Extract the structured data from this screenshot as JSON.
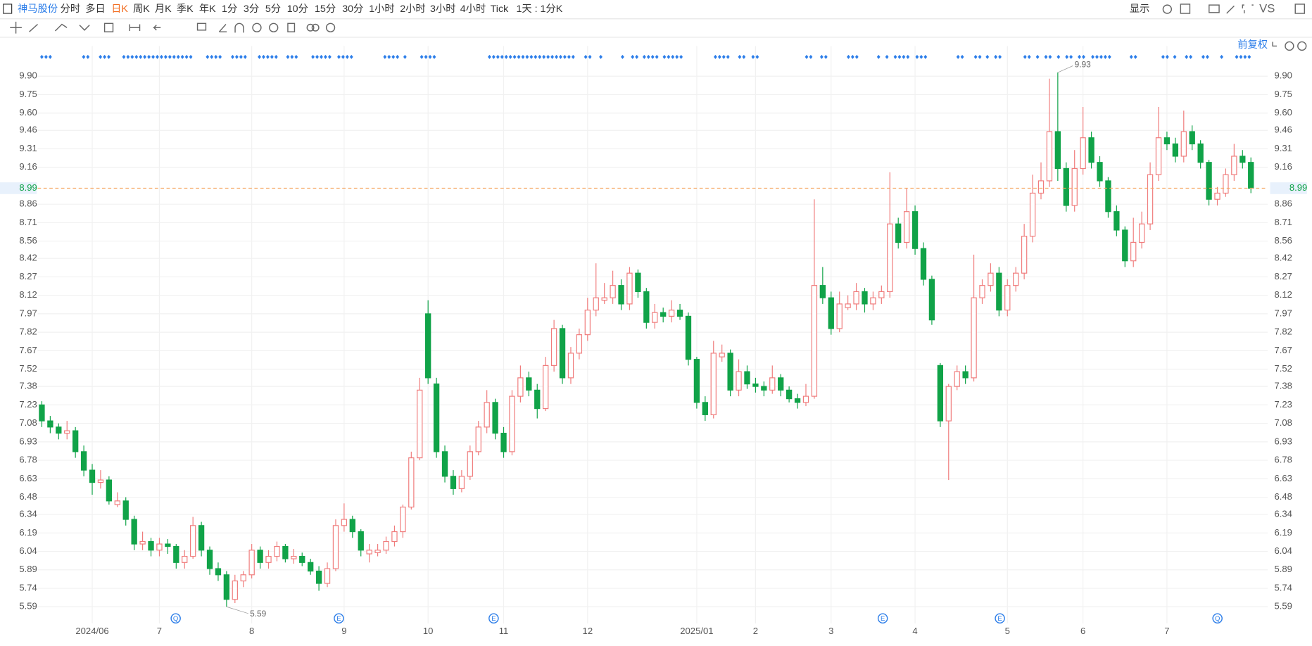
{
  "toolbar": {
    "stock": "神马股份",
    "periods": [
      "分时",
      "多日",
      "日K",
      "周K",
      "月K",
      "季K",
      "年K",
      "1分",
      "3分",
      "5分",
      "10分",
      "15分",
      "30分",
      "1小时",
      "2小时",
      "3小时",
      "4小时",
      "Tick",
      "1天 : 1分K"
    ],
    "display": "显示",
    "compare": "VS",
    "adjust": "前复权"
  },
  "chart_data": {
    "type": "candlestick",
    "categories": [
      null,
      null,
      null,
      null,
      null,
      null,
      "2024/06",
      null,
      null,
      null,
      null,
      null,
      null,
      null,
      "7",
      null,
      null,
      null,
      null,
      null,
      null,
      null,
      null,
      null,
      null,
      "8",
      null,
      null,
      null,
      null,
      null,
      null,
      null,
      null,
      null,
      null,
      "9",
      null,
      null,
      null,
      null,
      null,
      null,
      null,
      null,
      null,
      "10",
      null,
      null,
      null,
      null,
      null,
      null,
      null,
      null,
      "11",
      null,
      null,
      null,
      null,
      null,
      null,
      null,
      null,
      null,
      "12",
      null,
      null,
      null,
      null,
      null,
      null,
      null,
      null,
      null,
      null,
      null,
      null,
      "2025/01",
      null,
      null,
      null,
      null,
      null,
      null,
      "2",
      null,
      null,
      null,
      null,
      null,
      null,
      null,
      null,
      "3",
      null,
      null,
      null,
      null,
      null,
      null,
      null,
      null,
      null,
      "4",
      null,
      null,
      null,
      null,
      null,
      null,
      null,
      null,
      null,
      null,
      "5",
      null,
      null,
      null,
      null,
      null,
      null,
      null,
      null,
      "6",
      null,
      null,
      null,
      null,
      null,
      null,
      null,
      null,
      null,
      "7",
      null,
      null,
      null,
      null,
      null,
      null,
      null,
      null,
      null,
      null
    ],
    "candles": [
      [
        7.23,
        7.26,
        7.05,
        7.1
      ],
      [
        7.1,
        7.14,
        7.0,
        7.05
      ],
      [
        7.05,
        7.08,
        6.95,
        7.0
      ],
      [
        7.0,
        7.1,
        6.95,
        7.02
      ],
      [
        7.02,
        7.05,
        6.8,
        6.85
      ],
      [
        6.85,
        6.9,
        6.65,
        6.7
      ],
      [
        6.7,
        6.75,
        6.5,
        6.6
      ],
      [
        6.6,
        6.7,
        6.55,
        6.62
      ],
      [
        6.62,
        6.65,
        6.42,
        6.45
      ],
      [
        6.42,
        6.52,
        6.4,
        6.45
      ],
      [
        6.45,
        6.48,
        6.25,
        6.3
      ],
      [
        6.3,
        6.33,
        6.05,
        6.1
      ],
      [
        6.1,
        6.2,
        6.05,
        6.12
      ],
      [
        6.12,
        6.15,
        6.0,
        6.05
      ],
      [
        6.05,
        6.15,
        6.0,
        6.1
      ],
      [
        6.1,
        6.14,
        6.02,
        6.08
      ],
      [
        6.08,
        6.1,
        5.9,
        5.95
      ],
      [
        5.95,
        6.05,
        5.9,
        6.0
      ],
      [
        6.0,
        6.32,
        5.98,
        6.25
      ],
      [
        6.25,
        6.28,
        6.0,
        6.05
      ],
      [
        6.05,
        6.08,
        5.85,
        5.9
      ],
      [
        5.9,
        5.95,
        5.8,
        5.85
      ],
      [
        5.85,
        5.88,
        5.59,
        5.65
      ],
      [
        5.65,
        5.85,
        5.62,
        5.8
      ],
      [
        5.8,
        5.88,
        5.75,
        5.85
      ],
      [
        5.85,
        6.1,
        5.82,
        6.05
      ],
      [
        6.05,
        6.08,
        5.9,
        5.95
      ],
      [
        5.95,
        6.05,
        5.9,
        6.0
      ],
      [
        6.0,
        6.12,
        5.96,
        6.08
      ],
      [
        6.08,
        6.1,
        5.95,
        5.98
      ],
      [
        5.98,
        6.06,
        5.94,
        6.0
      ],
      [
        6.0,
        6.03,
        5.92,
        5.95
      ],
      [
        5.95,
        5.98,
        5.85,
        5.88
      ],
      [
        5.88,
        5.92,
        5.72,
        5.78
      ],
      [
        5.78,
        5.95,
        5.75,
        5.9
      ],
      [
        5.9,
        6.3,
        5.88,
        6.25
      ],
      [
        6.25,
        6.43,
        6.2,
        6.3
      ],
      [
        6.3,
        6.33,
        6.15,
        6.2
      ],
      [
        6.2,
        6.22,
        6.0,
        6.05
      ],
      [
        6.02,
        6.1,
        5.95,
        6.05
      ],
      [
        6.03,
        6.1,
        6.0,
        6.05
      ],
      [
        6.05,
        6.16,
        6.02,
        6.12
      ],
      [
        6.12,
        6.25,
        6.08,
        6.2
      ],
      [
        6.2,
        6.42,
        6.15,
        6.4
      ],
      [
        6.4,
        6.85,
        6.38,
        6.8
      ],
      [
        6.8,
        7.45,
        6.78,
        7.35
      ],
      [
        7.97,
        8.08,
        7.4,
        7.45
      ],
      [
        7.4,
        7.45,
        6.8,
        6.85
      ],
      [
        6.85,
        6.9,
        6.6,
        6.65
      ],
      [
        6.65,
        6.7,
        6.5,
        6.55
      ],
      [
        6.55,
        6.7,
        6.52,
        6.65
      ],
      [
        6.65,
        6.9,
        6.62,
        6.85
      ],
      [
        6.85,
        7.1,
        6.82,
        7.05
      ],
      [
        7.05,
        7.35,
        7.0,
        7.25
      ],
      [
        7.25,
        7.28,
        6.95,
        7.0
      ],
      [
        7.0,
        7.05,
        6.8,
        6.85
      ],
      [
        6.85,
        7.35,
        6.82,
        7.3
      ],
      [
        7.3,
        7.55,
        7.25,
        7.45
      ],
      [
        7.45,
        7.5,
        7.3,
        7.35
      ],
      [
        7.35,
        7.4,
        7.12,
        7.2
      ],
      [
        7.2,
        7.62,
        7.18,
        7.55
      ],
      [
        7.55,
        7.92,
        7.5,
        7.85
      ],
      [
        7.85,
        7.88,
        7.4,
        7.45
      ],
      [
        7.45,
        7.7,
        7.4,
        7.65
      ],
      [
        7.65,
        7.85,
        7.6,
        7.8
      ],
      [
        7.8,
        8.1,
        7.75,
        8.0
      ],
      [
        8.0,
        8.38,
        7.95,
        8.1
      ],
      [
        8.08,
        8.22,
        8.05,
        8.1
      ],
      [
        8.1,
        8.32,
        8.05,
        8.2
      ],
      [
        8.2,
        8.25,
        8.0,
        8.05
      ],
      [
        8.05,
        8.35,
        8.0,
        8.3
      ],
      [
        8.3,
        8.33,
        8.1,
        8.15
      ],
      [
        8.15,
        8.18,
        7.85,
        7.9
      ],
      [
        7.9,
        8.05,
        7.85,
        7.98
      ],
      [
        7.98,
        8.02,
        7.9,
        7.95
      ],
      [
        7.95,
        8.08,
        7.9,
        8.0
      ],
      [
        8.0,
        8.05,
        7.92,
        7.95
      ],
      [
        7.95,
        7.98,
        7.55,
        7.6
      ],
      [
        7.6,
        7.62,
        7.2,
        7.25
      ],
      [
        7.25,
        7.3,
        7.1,
        7.15
      ],
      [
        7.15,
        7.75,
        7.12,
        7.65
      ],
      [
        7.62,
        7.72,
        7.58,
        7.65
      ],
      [
        7.65,
        7.68,
        7.3,
        7.35
      ],
      [
        7.35,
        7.6,
        7.3,
        7.5
      ],
      [
        7.5,
        7.55,
        7.36,
        7.4
      ],
      [
        7.4,
        7.45,
        7.33,
        7.38
      ],
      [
        7.38,
        7.42,
        7.3,
        7.35
      ],
      [
        7.35,
        7.55,
        7.32,
        7.45
      ],
      [
        7.45,
        7.48,
        7.3,
        7.35
      ],
      [
        7.35,
        7.38,
        7.25,
        7.28
      ],
      [
        7.28,
        7.32,
        7.2,
        7.25
      ],
      [
        7.25,
        7.4,
        7.22,
        7.3
      ],
      [
        7.3,
        8.9,
        7.28,
        8.2
      ],
      [
        8.2,
        8.35,
        8.05,
        8.1
      ],
      [
        8.1,
        8.15,
        7.8,
        7.85
      ],
      [
        7.85,
        8.15,
        7.82,
        8.05
      ],
      [
        8.02,
        8.12,
        8.0,
        8.05
      ],
      [
        8.05,
        8.22,
        8.0,
        8.15
      ],
      [
        8.15,
        8.18,
        7.98,
        8.05
      ],
      [
        8.05,
        8.15,
        8.0,
        8.1
      ],
      [
        8.1,
        8.2,
        8.05,
        8.15
      ],
      [
        8.15,
        9.12,
        8.1,
        8.7
      ],
      [
        8.7,
        8.75,
        8.5,
        8.55
      ],
      [
        8.55,
        8.99,
        8.5,
        8.8
      ],
      [
        8.8,
        8.85,
        8.45,
        8.5
      ],
      [
        8.5,
        8.55,
        8.2,
        8.25
      ],
      [
        8.25,
        8.28,
        7.88,
        7.92
      ],
      [
        7.55,
        7.57,
        7.05,
        7.1
      ],
      [
        7.1,
        7.4,
        6.62,
        7.38
      ],
      [
        7.38,
        7.55,
        7.35,
        7.5
      ],
      [
        7.5,
        7.55,
        7.4,
        7.45
      ],
      [
        7.45,
        8.45,
        7.42,
        8.1
      ],
      [
        8.1,
        8.25,
        8.05,
        8.2
      ],
      [
        8.2,
        8.38,
        8.15,
        8.3
      ],
      [
        8.3,
        8.35,
        7.95,
        8.0
      ],
      [
        8.0,
        8.25,
        7.95,
        8.2
      ],
      [
        8.2,
        8.35,
        8.15,
        8.3
      ],
      [
        8.3,
        8.7,
        8.25,
        8.6
      ],
      [
        8.6,
        9.1,
        8.55,
        8.95
      ],
      [
        8.95,
        9.2,
        8.9,
        9.05
      ],
      [
        9.05,
        9.88,
        9.0,
        9.45
      ],
      [
        9.45,
        9.93,
        9.05,
        9.15
      ],
      [
        9.15,
        9.2,
        8.8,
        8.85
      ],
      [
        8.85,
        9.3,
        8.8,
        9.15
      ],
      [
        9.15,
        9.65,
        9.1,
        9.4
      ],
      [
        9.4,
        9.45,
        9.15,
        9.2
      ],
      [
        9.2,
        9.25,
        9.0,
        9.05
      ],
      [
        9.05,
        9.08,
        8.75,
        8.8
      ],
      [
        8.8,
        8.85,
        8.6,
        8.65
      ],
      [
        8.65,
        8.68,
        8.35,
        8.4
      ],
      [
        8.4,
        8.75,
        8.35,
        8.55
      ],
      [
        8.55,
        8.8,
        8.5,
        8.7
      ],
      [
        8.7,
        9.2,
        8.65,
        9.1
      ],
      [
        9.1,
        9.65,
        9.05,
        9.4
      ],
      [
        9.4,
        9.45,
        9.3,
        9.35
      ],
      [
        9.35,
        9.4,
        9.2,
        9.25
      ],
      [
        9.25,
        9.62,
        9.2,
        9.45
      ],
      [
        9.45,
        9.5,
        9.3,
        9.35
      ],
      [
        9.35,
        9.38,
        9.15,
        9.2
      ],
      [
        9.2,
        9.22,
        8.85,
        8.9
      ],
      [
        8.9,
        9.0,
        8.85,
        8.95
      ],
      [
        8.95,
        9.15,
        8.92,
        9.1
      ],
      [
        9.1,
        9.35,
        9.05,
        9.25
      ],
      [
        9.25,
        9.3,
        9.15,
        9.2
      ],
      [
        9.2,
        9.24,
        8.95,
        8.99
      ]
    ],
    "up_color": "#f07c7c",
    "down_color": "#10a348",
    "last_color": "#f5a55f",
    "ylim": [
      5.455,
      10.145
    ],
    "yticks": [
      5.59,
      5.74,
      5.89,
      6.04,
      6.19,
      6.34,
      6.48,
      6.63,
      6.78,
      6.93,
      7.08,
      7.23,
      7.38,
      7.52,
      7.67,
      7.82,
      7.97,
      8.12,
      8.27,
      8.42,
      8.56,
      8.71,
      8.86,
      9.16,
      9.31,
      9.46,
      {
        "value": 9.6,
        "label": "9.60"
      },
      9.75,
      {
        "value": 9.9,
        "label": "9.90"
      }
    ],
    "grid": true,
    "events": [
      "Q",
      "E",
      "E",
      "E",
      "E",
      "Q"
    ]
  }
}
